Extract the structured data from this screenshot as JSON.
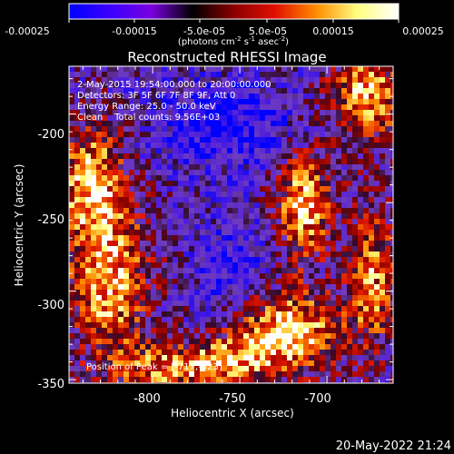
{
  "colorbar": {
    "tick_labels": [
      "-0.00025",
      "-0.00015",
      "-5.0e-05",
      "5.0e-05",
      "0.00015",
      "0.00025"
    ],
    "units_text": "(photons cm",
    "units_exp1": "-2",
    "units_s": " s",
    "units_exp2": "-1",
    "units_asec": " asec",
    "units_exp3": "-2",
    "units_close": ")",
    "range": [
      -0.00025,
      0.00025
    ],
    "colormap": [
      "#0000ff",
      "#3c00ff",
      "#7a00e0",
      "#000000",
      "#8b0000",
      "#e01000",
      "#ff8c00",
      "#ffff80",
      "#ffffff"
    ]
  },
  "title": "Reconstructed RHESSI Image",
  "info": {
    "line1": "2-May-2015 19:54:00.000 to 20:00:00.000",
    "line2": "Detectors: 3F 5F 6F 7F 8F 9F, Att 0",
    "line3": "Energy Range: 25.0 - 50.0 keV",
    "line4": "Clean    Total counts: 9.56E+03"
  },
  "peak_text": "Position of Peak = [-717,-323]",
  "axes": {
    "xlabel": "Heliocentric X (arcsec)",
    "ylabel": "Heliocentric Y (arcsec)",
    "xticks": [
      "-800",
      "-750",
      "-700"
    ],
    "yticks": [
      "-200",
      "-250",
      "-300",
      "-350"
    ],
    "xlim": [
      -848,
      -662
    ],
    "ylim": [
      -352,
      -173
    ]
  },
  "timestamp": "20-May-2022 21:24"
}
